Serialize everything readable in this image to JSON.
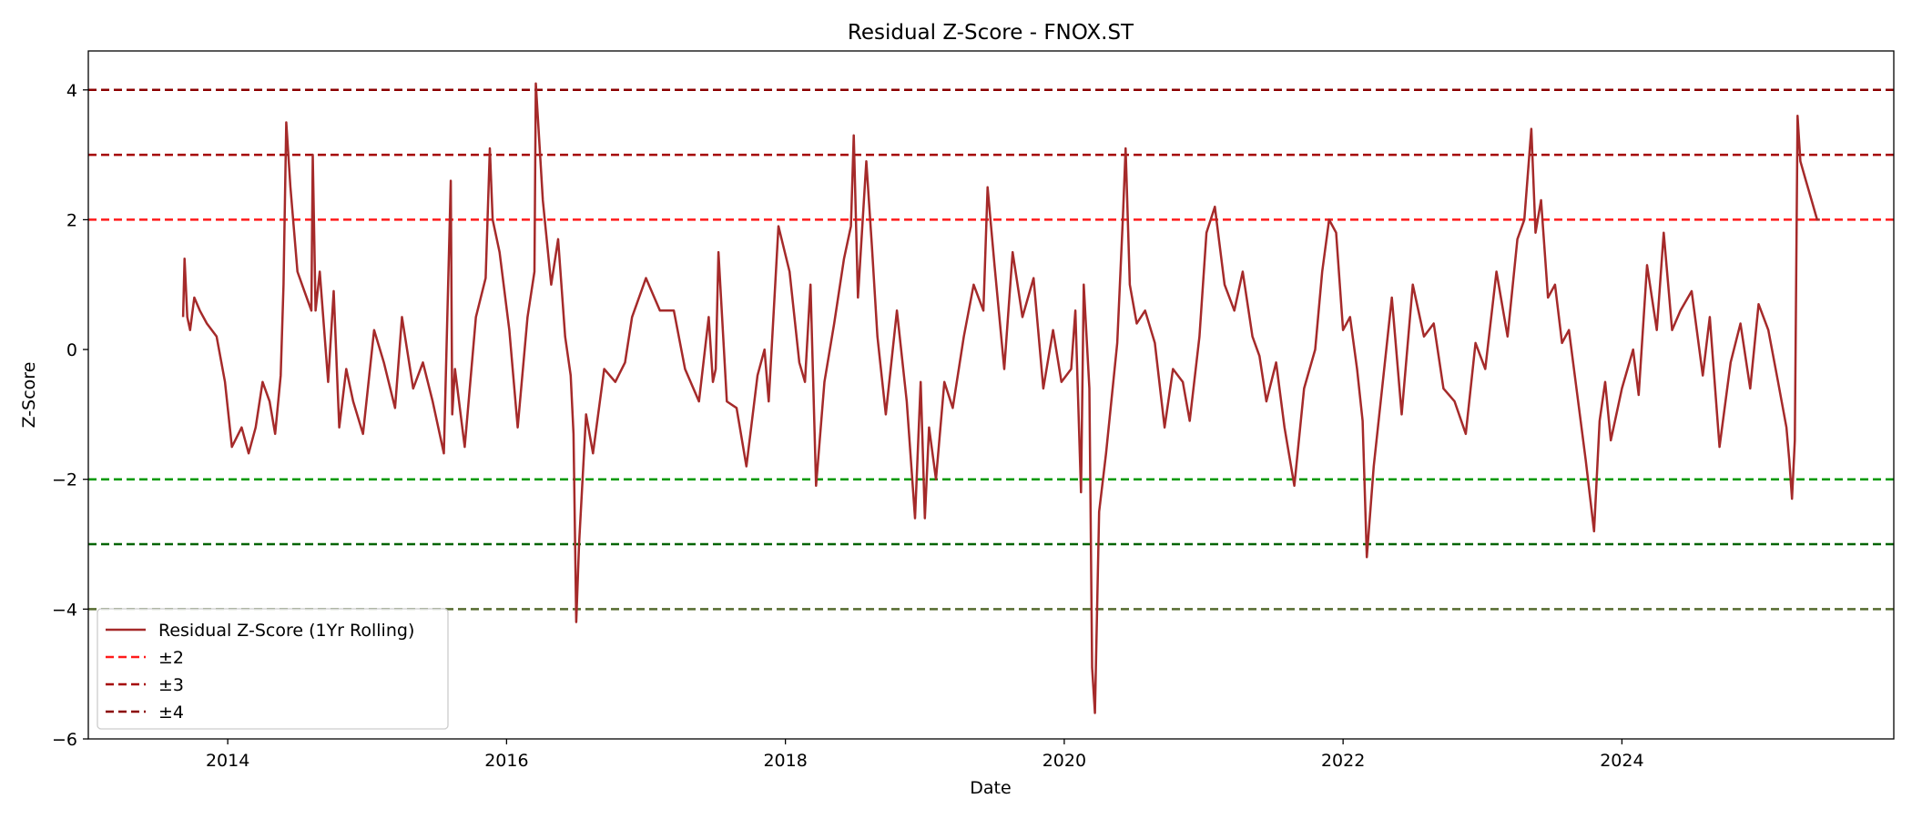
{
  "chart_data": {
    "type": "line",
    "title": "Residual Z-Score - FNOX.ST",
    "xlabel": "Date",
    "ylabel": "Z-Score",
    "xlim": [
      2013.0,
      2025.95
    ],
    "ylim": [
      -6.0,
      4.6
    ],
    "x_ticks": [
      2014,
      2016,
      2018,
      2020,
      2022,
      2024
    ],
    "x_tick_labels": [
      "2014",
      "2016",
      "2018",
      "2020",
      "2022",
      "2024"
    ],
    "y_ticks": [
      -6,
      -4,
      -2,
      0,
      2,
      4
    ],
    "y_tick_labels": [
      "−6",
      "−4",
      "−2",
      "0",
      "2",
      "4"
    ],
    "grid": false,
    "legend_position": "lower-left",
    "series": [
      {
        "name": "Residual Z-Score (1Yr Rolling)",
        "color": "#a52a2a",
        "x": [
          2013.68,
          2013.69,
          2013.71,
          2013.73,
          2013.76,
          2013.8,
          2013.85,
          2013.92,
          2013.98,
          2014.03,
          2014.1,
          2014.15,
          2014.2,
          2014.25,
          2014.3,
          2014.34,
          2014.38,
          2014.4,
          2014.42,
          2014.45,
          2014.5,
          2014.55,
          2014.6,
          2014.61,
          2014.63,
          2014.66,
          2014.72,
          2014.76,
          2014.8,
          2014.85,
          2014.9,
          2014.97,
          2015.05,
          2015.12,
          2015.2,
          2015.25,
          2015.33,
          2015.4,
          2015.47,
          2015.55,
          2015.6,
          2015.61,
          2015.63,
          2015.7,
          2015.78,
          2015.85,
          2015.88,
          2015.9,
          2015.95,
          2016.02,
          2016.08,
          2016.15,
          2016.2,
          2016.21,
          2016.26,
          2016.32,
          2016.37,
          2016.42,
          2016.46,
          2016.48,
          2016.5,
          2016.52,
          2016.57,
          2016.62,
          2016.7,
          2016.78,
          2016.85,
          2016.9,
          2017.0,
          2017.1,
          2017.2,
          2017.28,
          2017.38,
          2017.45,
          2017.48,
          2017.5,
          2017.52,
          2017.58,
          2017.65,
          2017.72,
          2017.8,
          2017.85,
          2017.88,
          2017.95,
          2018.03,
          2018.1,
          2018.14,
          2018.18,
          2018.22,
          2018.28,
          2018.35,
          2018.42,
          2018.47,
          2018.49,
          2018.52,
          2018.58,
          2018.62,
          2018.66,
          2018.72,
          2018.8,
          2018.87,
          2018.93,
          2018.97,
          2019.0,
          2019.03,
          2019.08,
          2019.14,
          2019.2,
          2019.28,
          2019.35,
          2019.42,
          2019.45,
          2019.5,
          2019.57,
          2019.63,
          2019.7,
          2019.78,
          2019.85,
          2019.92,
          2019.98,
          2020.05,
          2020.08,
          2020.12,
          2020.14,
          2020.18,
          2020.2,
          2020.22,
          2020.25,
          2020.3,
          2020.38,
          2020.42,
          2020.44,
          2020.47,
          2020.52,
          2020.58,
          2020.65,
          2020.72,
          2020.78,
          2020.85,
          2020.9,
          2020.97,
          2021.02,
          2021.08,
          2021.15,
          2021.22,
          2021.28,
          2021.35,
          2021.4,
          2021.45,
          2021.52,
          2021.58,
          2021.65,
          2021.72,
          2021.8,
          2021.85,
          2021.9,
          2021.95,
          2022.0,
          2022.05,
          2022.1,
          2022.14,
          2022.17,
          2022.22,
          2022.28,
          2022.35,
          2022.42,
          2022.5,
          2022.58,
          2022.65,
          2022.72,
          2022.8,
          2022.88,
          2022.95,
          2023.02,
          2023.1,
          2023.18,
          2023.25,
          2023.3,
          2023.35,
          2023.38,
          2023.42,
          2023.47,
          2023.52,
          2023.57,
          2023.62,
          2023.68,
          2023.74,
          2023.8,
          2023.84,
          2023.88,
          2023.92,
          2024.0,
          2024.08,
          2024.12,
          2024.18,
          2024.25,
          2024.3,
          2024.36,
          2024.42,
          2024.5,
          2024.58,
          2024.63,
          2024.7,
          2024.78,
          2024.85,
          2024.92,
          2024.98,
          2025.05,
          2025.12,
          2025.18,
          2025.2,
          2025.22,
          2025.24,
          2025.26,
          2025.28,
          2025.32,
          2025.36,
          2025.4,
          2025.42
        ],
        "y": [
          0.5,
          1.4,
          0.5,
          0.3,
          0.8,
          0.6,
          0.4,
          0.2,
          -0.5,
          -1.5,
          -1.2,
          -1.6,
          -1.2,
          -0.5,
          -0.8,
          -1.3,
          -0.4,
          1.0,
          3.5,
          2.5,
          1.2,
          0.9,
          0.6,
          3.0,
          0.6,
          1.2,
          -0.5,
          0.9,
          -1.2,
          -0.3,
          -0.8,
          -1.3,
          0.3,
          -0.2,
          -0.9,
          0.5,
          -0.6,
          -0.2,
          -0.8,
          -1.6,
          2.6,
          -1.0,
          -0.3,
          -1.5,
          0.5,
          1.1,
          3.1,
          2.0,
          1.5,
          0.3,
          -1.2,
          0.5,
          1.2,
          4.1,
          2.3,
          1.0,
          1.7,
          0.2,
          -0.4,
          -1.3,
          -4.2,
          -3.0,
          -1.0,
          -1.6,
          -0.3,
          -0.5,
          -0.2,
          0.5,
          1.1,
          0.6,
          0.6,
          -0.3,
          -0.8,
          0.5,
          -0.5,
          -0.3,
          1.5,
          -0.8,
          -0.9,
          -1.8,
          -0.4,
          0.0,
          -0.8,
          1.9,
          1.2,
          -0.2,
          -0.5,
          1.0,
          -2.1,
          -0.5,
          0.4,
          1.4,
          1.9,
          3.3,
          0.8,
          2.9,
          1.6,
          0.2,
          -1.0,
          0.6,
          -0.8,
          -2.6,
          -0.5,
          -2.6,
          -1.2,
          -2.0,
          -0.5,
          -0.9,
          0.2,
          1.0,
          0.6,
          2.5,
          1.3,
          -0.3,
          1.5,
          0.5,
          1.1,
          -0.6,
          0.3,
          -0.5,
          -0.3,
          0.6,
          -2.2,
          1.0,
          -0.6,
          -4.9,
          -5.6,
          -2.5,
          -1.6,
          0.1,
          2.0,
          3.1,
          1.0,
          0.4,
          0.6,
          0.1,
          -1.2,
          -0.3,
          -0.5,
          -1.1,
          0.2,
          1.8,
          2.2,
          1.0,
          0.6,
          1.2,
          0.2,
          -0.1,
          -0.8,
          -0.2,
          -1.2,
          -2.1,
          -0.6,
          0.0,
          1.2,
          2.0,
          1.8,
          0.3,
          0.5,
          -0.3,
          -1.1,
          -3.2,
          -1.8,
          -0.6,
          0.8,
          -1.0,
          1.0,
          0.2,
          0.4,
          -0.6,
          -0.8,
          -1.3,
          0.1,
          -0.3,
          1.2,
          0.2,
          1.7,
          2.0,
          3.4,
          1.8,
          2.3,
          0.8,
          1.0,
          0.1,
          0.3,
          -0.7,
          -1.7,
          -2.8,
          -1.1,
          -0.5,
          -1.4,
          -0.6,
          0.0,
          -0.7,
          1.3,
          0.3,
          1.8,
          0.3,
          0.6,
          0.9,
          -0.4,
          0.5,
          -1.5,
          -0.2,
          0.4,
          -0.6,
          0.7,
          0.3,
          -0.5,
          -1.2,
          -1.7,
          -2.3,
          -1.4,
          3.6,
          2.9,
          2.6,
          2.3,
          2.0,
          2.0
        ]
      }
    ],
    "reference_lines": [
      {
        "label": "±2",
        "values": [
          2,
          -2
        ],
        "upper_color": "#ff1a1a",
        "lower_color": "#009900"
      },
      {
        "label": "±3",
        "values": [
          3,
          -3
        ],
        "upper_color": "#a50000",
        "lower_color": "#006400"
      },
      {
        "label": "±4",
        "values": [
          4,
          -4
        ],
        "upper_color": "#8b0000",
        "lower_color": "#556b2f"
      }
    ]
  },
  "legend": {
    "items": [
      {
        "label": "Residual Z-Score (1Yr Rolling)",
        "color": "#a52a2a",
        "style": "solid"
      },
      {
        "label": "±2",
        "color": "#ff1a1a",
        "style": "dashed"
      },
      {
        "label": "±3",
        "color": "#a50000",
        "style": "dashed"
      },
      {
        "label": "±4",
        "color": "#8b0000",
        "style": "dashed"
      }
    ]
  }
}
